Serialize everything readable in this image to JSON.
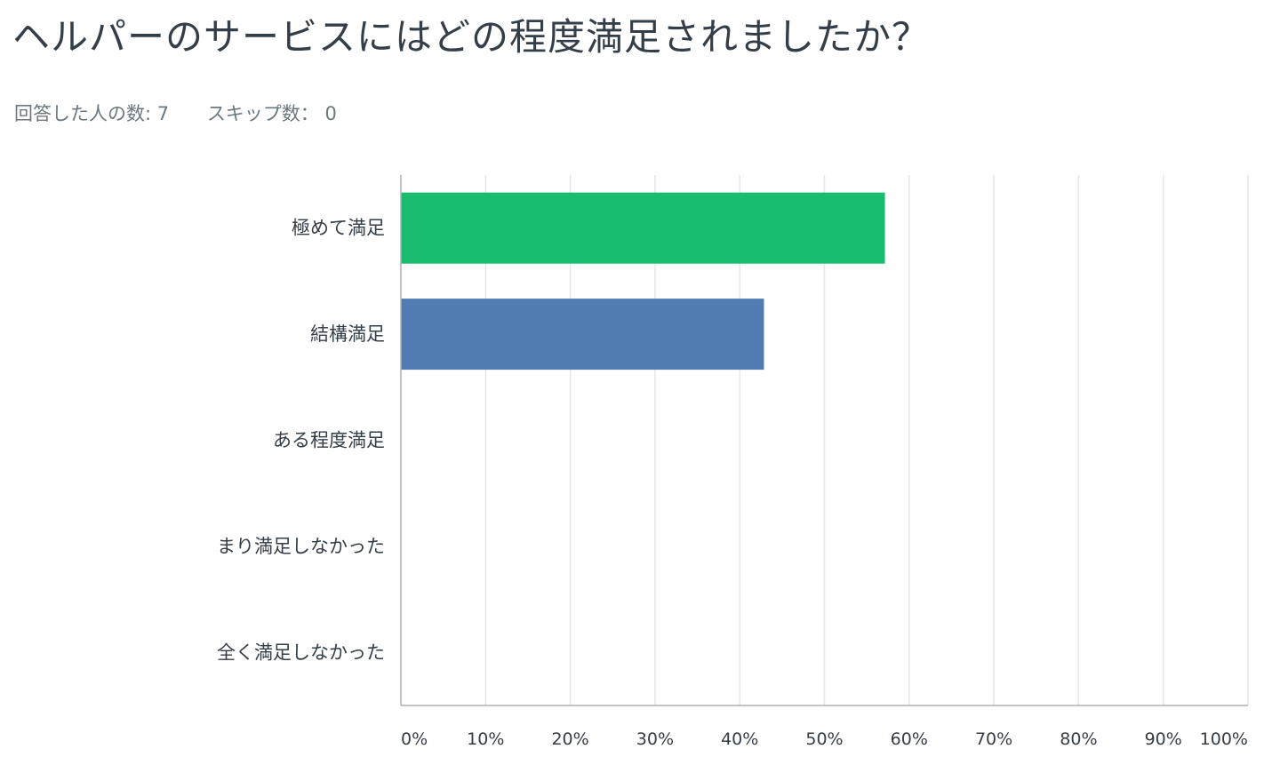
{
  "question": {
    "title": "ヘルパーのサービスにはどの程度満足されましたか？"
  },
  "stats": {
    "answered_label": "回答した人の数: 7",
    "skipped_label": "スキップ数： 0"
  },
  "chart_data": {
    "type": "bar",
    "orientation": "horizontal",
    "categories": [
      "極めて満足",
      "結構満足",
      "ある程度満足",
      "まり満足しなかった",
      "全く満足しなかった"
    ],
    "values": [
      57.14,
      42.86,
      0,
      0,
      0
    ],
    "unit": "%",
    "xlim": [
      0,
      100
    ],
    "x_ticks": [
      "0%",
      "10%",
      "20%",
      "30%",
      "40%",
      "50%",
      "60%",
      "70%",
      "80%",
      "90%",
      "100%"
    ],
    "grid": true,
    "legend": "none",
    "colors": [
      "#1abc6f",
      "#507cb1",
      "#507cb1",
      "#507cb1",
      "#507cb1"
    ],
    "grid_color": "#e6e6e6",
    "axis_color": "#b0b0b0"
  }
}
